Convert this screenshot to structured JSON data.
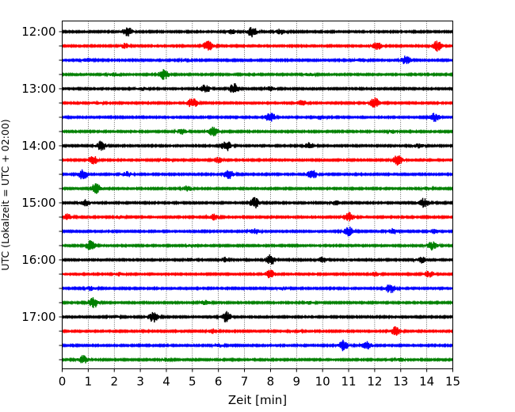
{
  "chart_data": {
    "type": "line",
    "title": "",
    "xlabel": "Zeit  [min]",
    "ylabel": "UTC (Lokalzeit = UTC + 02:00)",
    "xlim": [
      0,
      15
    ],
    "x_ticks": [
      "0",
      "1",
      "2",
      "3",
      "4",
      "5",
      "6",
      "7",
      "8",
      "9",
      "10",
      "11",
      "12",
      "13",
      "14",
      "15"
    ],
    "y_tick_labels": [
      "12:00",
      "13:00",
      "14:00",
      "15:00",
      "16:00",
      "17:00"
    ],
    "grid": "vertical dotted lines at each minute",
    "color_cycle": [
      "#000000",
      "#ff0000",
      "#0000ff",
      "#008000"
    ],
    "traces": [
      {
        "start": "12:00",
        "color": "#000000",
        "bursts": [
          [
            2.5,
            0.9
          ],
          [
            7.3,
            1.0
          ],
          [
            8.4,
            0.5
          ],
          [
            6.5,
            0.4
          ]
        ]
      },
      {
        "start": "12:15",
        "color": "#ff0000",
        "bursts": [
          [
            2.4,
            0.5
          ],
          [
            5.6,
            1.0
          ],
          [
            12.1,
            0.7
          ],
          [
            14.4,
            1.0
          ]
        ]
      },
      {
        "start": "12:30",
        "color": "#0000ff",
        "bursts": [
          [
            1.0,
            0.4
          ],
          [
            4.8,
            0.3
          ],
          [
            13.2,
            0.8
          ],
          [
            11.5,
            0.3
          ]
        ]
      },
      {
        "start": "12:45",
        "color": "#008000",
        "bursts": [
          [
            3.9,
            1.0
          ],
          [
            2.0,
            0.3
          ],
          [
            9.5,
            0.3
          ]
        ]
      },
      {
        "start": "13:00",
        "color": "#000000",
        "bursts": [
          [
            5.5,
            0.8
          ],
          [
            6.6,
            1.0
          ],
          [
            8.0,
            0.4
          ],
          [
            3.1,
            0.3
          ]
        ]
      },
      {
        "start": "13:15",
        "color": "#ff0000",
        "bursts": [
          [
            5.0,
            1.0
          ],
          [
            12.0,
            1.0
          ],
          [
            9.2,
            0.5
          ],
          [
            1.3,
            0.3
          ]
        ]
      },
      {
        "start": "13:30",
        "color": "#0000ff",
        "bursts": [
          [
            8.0,
            1.0
          ],
          [
            14.3,
            0.8
          ],
          [
            9.9,
            0.4
          ]
        ]
      },
      {
        "start": "13:45",
        "color": "#008000",
        "bursts": [
          [
            5.8,
            1.0
          ],
          [
            4.6,
            0.5
          ],
          [
            12.7,
            0.3
          ]
        ]
      },
      {
        "start": "14:00",
        "color": "#000000",
        "bursts": [
          [
            1.5,
            0.9
          ],
          [
            6.3,
            1.0
          ],
          [
            9.5,
            0.6
          ],
          [
            13.7,
            0.4
          ]
        ]
      },
      {
        "start": "14:15",
        "color": "#ff0000",
        "bursts": [
          [
            1.2,
            0.8
          ],
          [
            6.0,
            0.5
          ],
          [
            12.9,
            1.0
          ],
          [
            4.0,
            0.3
          ]
        ]
      },
      {
        "start": "14:30",
        "color": "#0000ff",
        "bursts": [
          [
            0.8,
            1.0
          ],
          [
            6.4,
            0.9
          ],
          [
            9.6,
            0.9
          ],
          [
            2.5,
            0.5
          ]
        ]
      },
      {
        "start": "14:45",
        "color": "#008000",
        "bursts": [
          [
            1.3,
            1.0
          ],
          [
            4.8,
            0.5
          ],
          [
            14.0,
            0.3
          ]
        ]
      },
      {
        "start": "15:00",
        "color": "#000000",
        "bursts": [
          [
            0.9,
            0.6
          ],
          [
            7.4,
            1.0
          ],
          [
            13.9,
            0.9
          ],
          [
            10.5,
            0.4
          ]
        ]
      },
      {
        "start": "15:15",
        "color": "#ff0000",
        "bursts": [
          [
            0.2,
            0.6
          ],
          [
            5.8,
            0.6
          ],
          [
            11.0,
            1.0
          ],
          [
            2.2,
            0.3
          ]
        ]
      },
      {
        "start": "15:30",
        "color": "#0000ff",
        "bursts": [
          [
            7.4,
            0.5
          ],
          [
            11.0,
            0.9
          ],
          [
            12.7,
            0.5
          ],
          [
            14.3,
            0.4
          ]
        ]
      },
      {
        "start": "15:45",
        "color": "#008000",
        "bursts": [
          [
            1.1,
            1.0
          ],
          [
            14.2,
            0.9
          ],
          [
            5.0,
            0.3
          ]
        ]
      },
      {
        "start": "16:00",
        "color": "#000000",
        "bursts": [
          [
            8.0,
            1.0
          ],
          [
            6.3,
            0.5
          ],
          [
            10.0,
            0.5
          ],
          [
            13.8,
            0.6
          ],
          [
            4.9,
            0.3
          ]
        ]
      },
      {
        "start": "16:15",
        "color": "#ff0000",
        "bursts": [
          [
            8.0,
            0.8
          ],
          [
            12.0,
            0.4
          ],
          [
            14.1,
            0.6
          ],
          [
            2.2,
            0.3
          ]
        ]
      },
      {
        "start": "16:30",
        "color": "#0000ff",
        "bursts": [
          [
            12.6,
            0.9
          ],
          [
            1.1,
            0.4
          ],
          [
            8.5,
            0.3
          ]
        ]
      },
      {
        "start": "16:45",
        "color": "#008000",
        "bursts": [
          [
            1.2,
            1.0
          ],
          [
            5.5,
            0.4
          ],
          [
            9.5,
            0.3
          ]
        ]
      },
      {
        "start": "17:00",
        "color": "#000000",
        "bursts": [
          [
            3.5,
            1.0
          ],
          [
            6.3,
            1.0
          ],
          [
            2.0,
            0.3
          ]
        ]
      },
      {
        "start": "17:15",
        "color": "#ff0000",
        "bursts": [
          [
            12.8,
            0.9
          ],
          [
            5.8,
            0.4
          ],
          [
            9.0,
            0.3
          ]
        ]
      },
      {
        "start": "17:30",
        "color": "#0000ff",
        "bursts": [
          [
            10.8,
            1.0
          ],
          [
            11.7,
            0.7
          ],
          [
            6.0,
            0.3
          ]
        ]
      },
      {
        "start": "17:45",
        "color": "#008000",
        "bursts": [
          [
            0.8,
            0.8
          ],
          [
            4.0,
            0.3
          ],
          [
            13.0,
            0.3
          ]
        ]
      }
    ]
  }
}
